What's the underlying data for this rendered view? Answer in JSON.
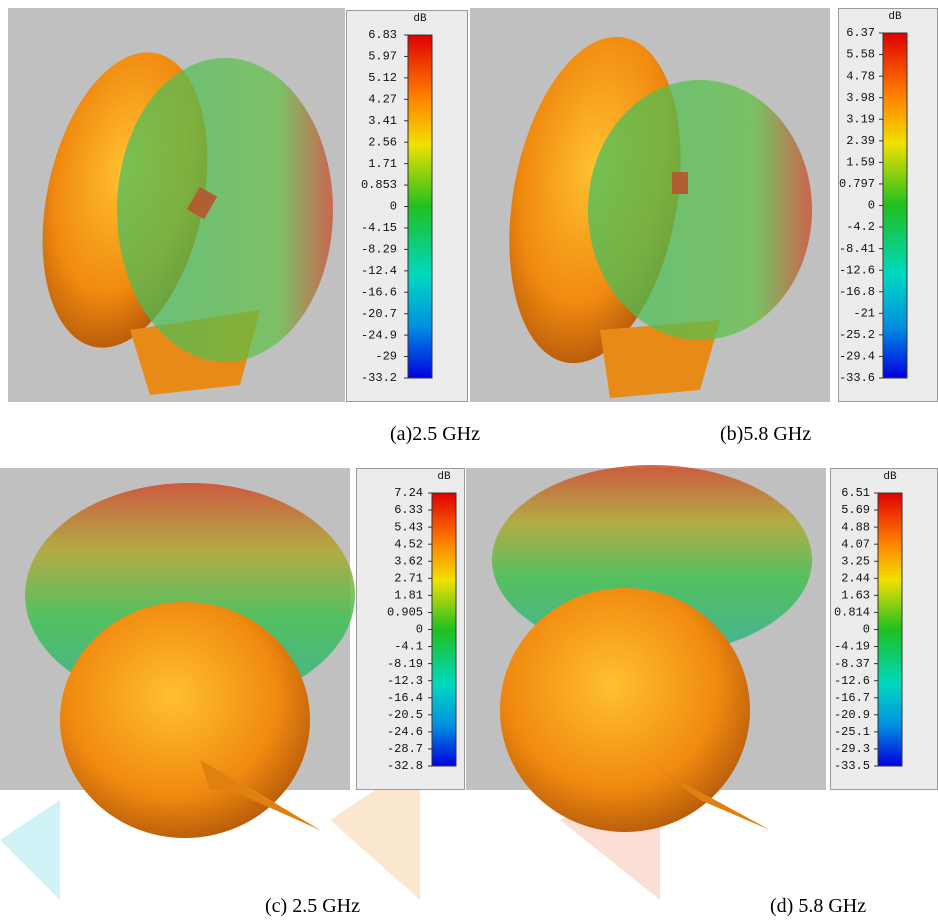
{
  "panels": [
    {
      "caption": "(a)2.5 GHz",
      "colorbar": {
        "unit": "dB",
        "labels": [
          "6.83",
          "5.97",
          "5.12",
          "4.27",
          "3.41",
          "2.56",
          "1.71",
          "0.853",
          "0",
          "-4.15",
          "-8.29",
          "-12.4",
          "-16.6",
          "-20.7",
          "-24.9",
          "-29",
          "-33.2"
        ]
      }
    },
    {
      "caption": "(b)5.8 GHz",
      "colorbar": {
        "unit": "dB",
        "labels": [
          "6.37",
          "5.58",
          "4.78",
          "3.98",
          "3.19",
          "2.39",
          "1.59",
          "0.797",
          "0",
          "-4.2",
          "-8.41",
          "-12.6",
          "-16.8",
          "-21",
          "-25.2",
          "-29.4",
          "-33.6"
        ]
      }
    },
    {
      "caption": "(c) 2.5 GHz",
      "colorbar": {
        "unit": "dB",
        "labels": [
          "7.24",
          "6.33",
          "5.43",
          "4.52",
          "3.62",
          "2.71",
          "1.81",
          "0.905",
          "0",
          "-4.1",
          "-8.19",
          "-12.3",
          "-16.4",
          "-20.5",
          "-24.6",
          "-28.7",
          "-32.8"
        ]
      }
    },
    {
      "caption": "(d) 5.8 GHz",
      "colorbar": {
        "unit": "dB",
        "labels": [
          "6.51",
          "5.69",
          "4.88",
          "4.07",
          "3.25",
          "2.44",
          "1.63",
          "0.814",
          "0",
          "-4.19",
          "-8.37",
          "-12.6",
          "-16.7",
          "-20.9",
          "-25.1",
          "-29.3",
          "-33.5"
        ]
      }
    }
  ]
}
